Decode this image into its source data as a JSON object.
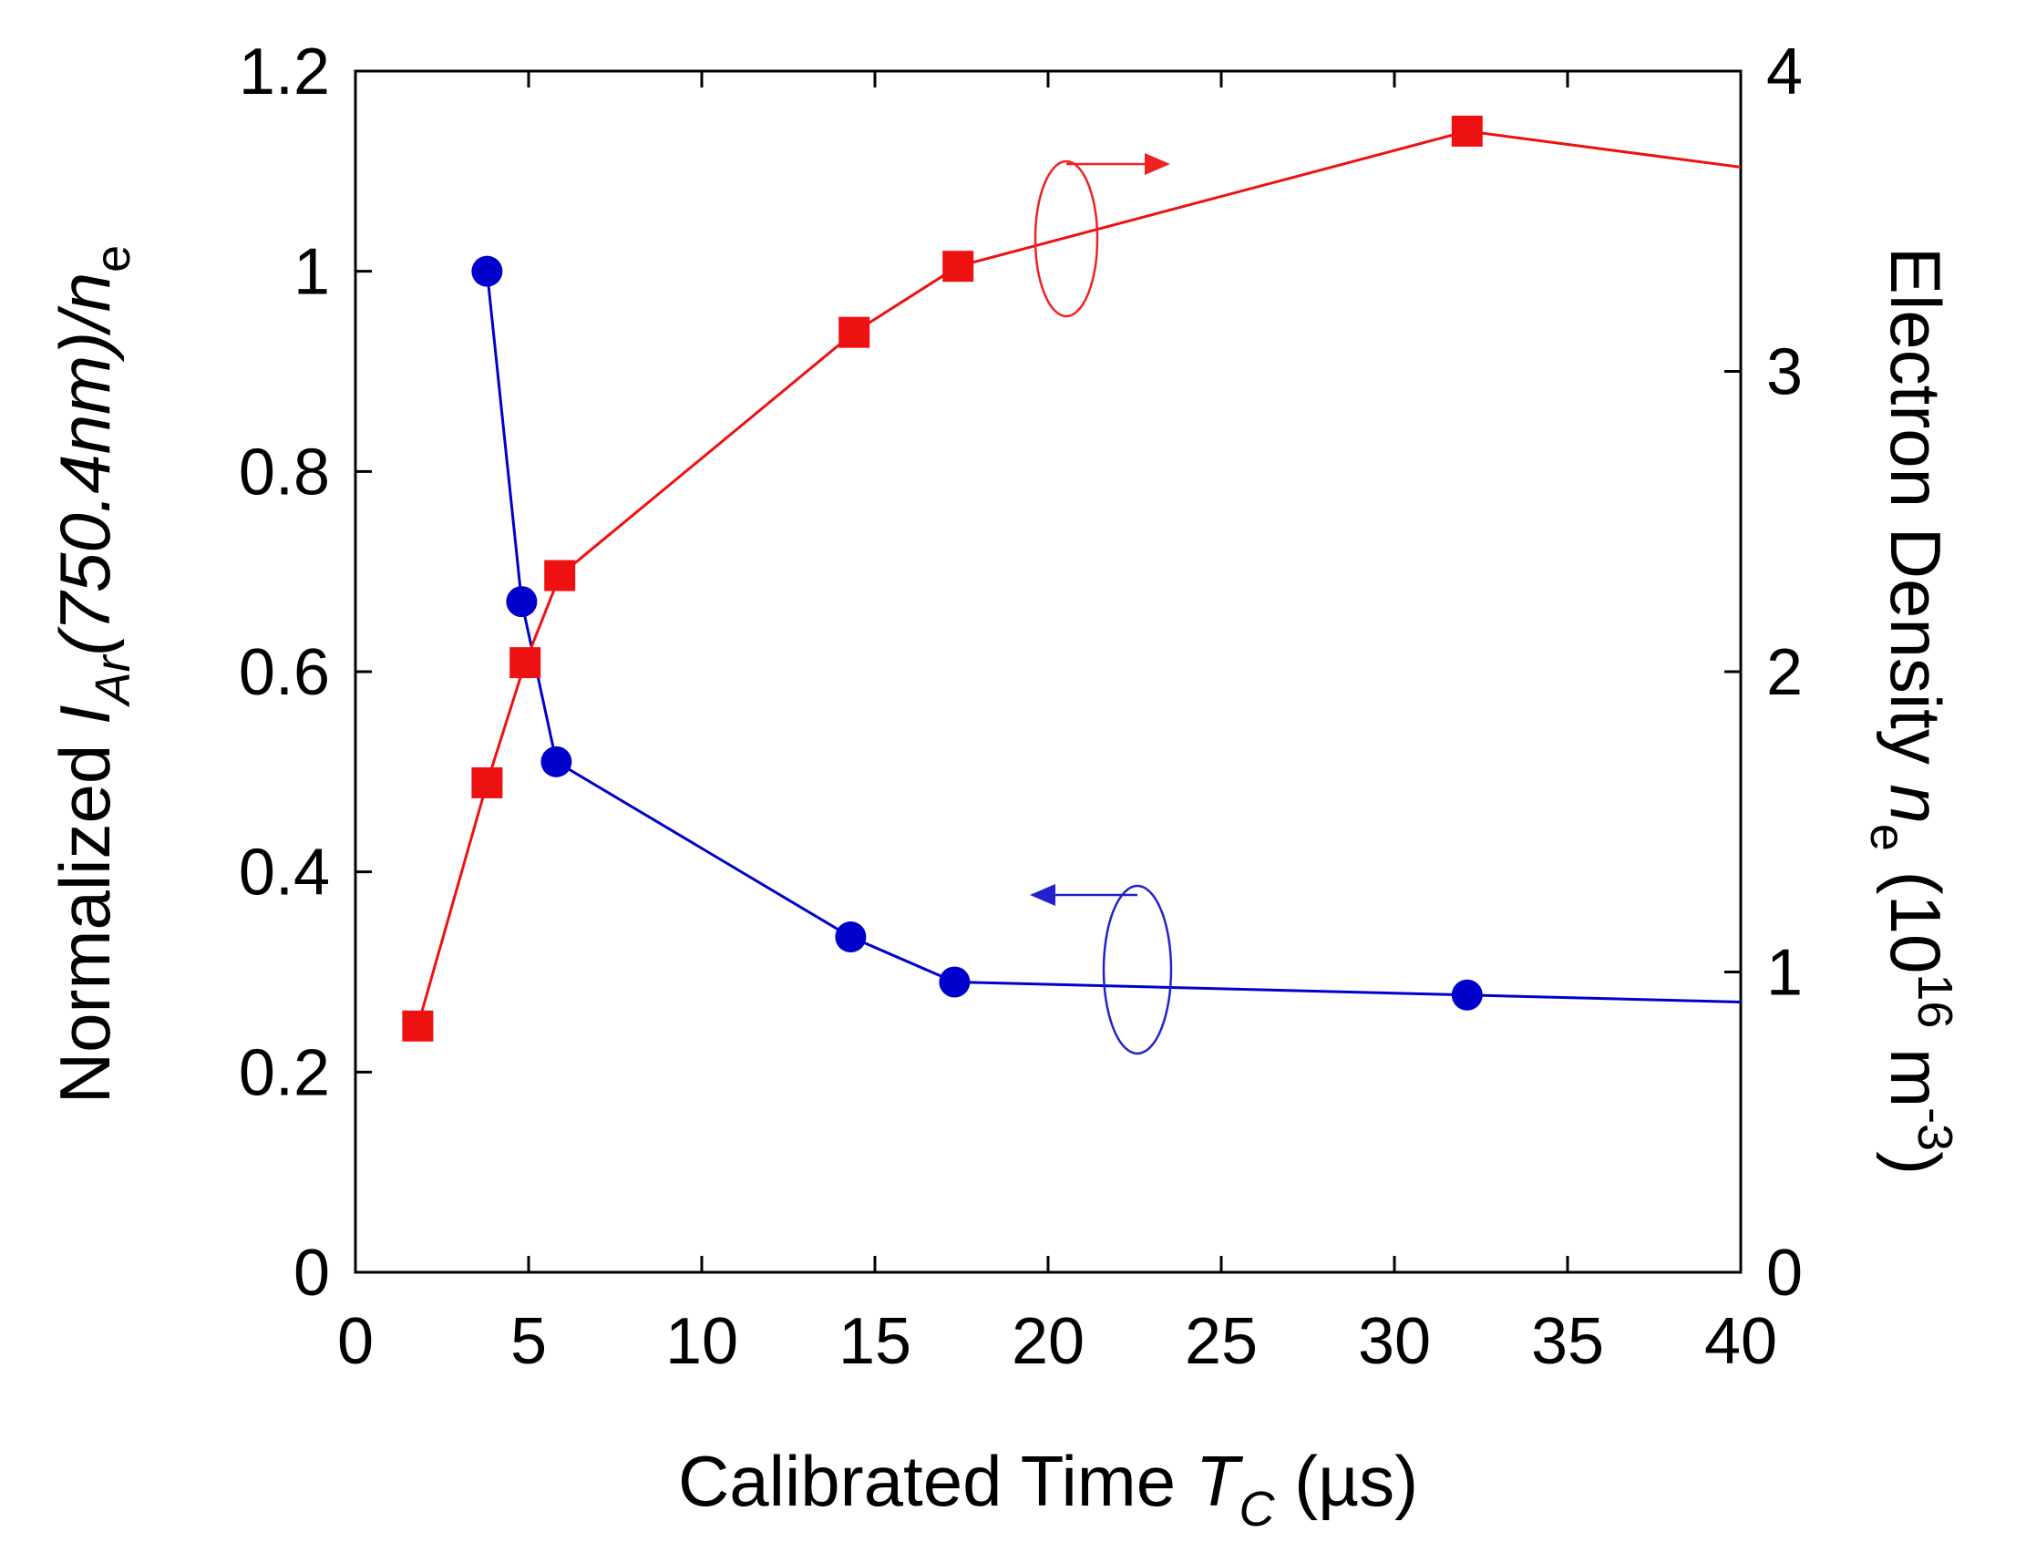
{
  "chart_data": {
    "type": "line",
    "title": "",
    "xlabel": {
      "main": "Calibrated Time ",
      "italic": "T",
      "sub": "C",
      "unit": " (µs)"
    },
    "ylabel_left": {
      "prefix": "Normalized ",
      "italic": "I",
      "sub": "Ar",
      "mid": "(750.4nm)/",
      "italic2": "n",
      "sub2": "e"
    },
    "ylabel_right": {
      "main": "Electron Density ",
      "italic": "n",
      "sub": "e",
      "unit_open": " (10",
      "sup": "16",
      "unit_mid": " m",
      "sup2": "-3",
      "unit_close": ")"
    },
    "xlim": [
      0,
      40
    ],
    "ylim_left": [
      0,
      1.2
    ],
    "ylim_right": [
      0,
      4
    ],
    "x_ticks": [
      "0",
      "5",
      "10",
      "15",
      "20",
      "25",
      "30",
      "35",
      "40"
    ],
    "x_tick_values": [
      0,
      5,
      10,
      15,
      20,
      25,
      30,
      35,
      40
    ],
    "y_left_ticks": [
      "0",
      "0.2",
      "0.4",
      "0.6",
      "0.8",
      "1",
      "1.2"
    ],
    "y_left_tick_values": [
      0,
      0.2,
      0.4,
      0.6,
      0.8,
      1.0,
      1.2
    ],
    "y_right_ticks": [
      "0",
      "1",
      "2",
      "3",
      "4"
    ],
    "y_right_tick_values": [
      0,
      1,
      2,
      3,
      4
    ],
    "grid": false,
    "series": [
      {
        "name": "Normalized I_Ar(750.4nm)/n_e",
        "axis": "left",
        "color": "#0000cc",
        "marker": "circle",
        "x": [
          3.8,
          4.8,
          5.8,
          14.3,
          17.3,
          32.1
        ],
        "y": [
          1.0,
          0.67,
          0.51,
          0.335,
          0.29,
          0.277
        ],
        "trail": {
          "x": 40,
          "y": 0.27
        }
      },
      {
        "name": "Electron Density n_e",
        "axis": "right",
        "color": "#ee1111",
        "marker": "square",
        "x": [
          1.8,
          3.8,
          4.9,
          5.9,
          14.4,
          17.4,
          32.1
        ],
        "y": [
          0.82,
          1.63,
          2.03,
          2.32,
          3.13,
          3.35,
          3.8
        ],
        "trail": {
          "x": 40,
          "y": 3.68
        }
      }
    ],
    "annotations": [
      {
        "name": "left-axis-indicator",
        "series": 0,
        "direction": "left"
      },
      {
        "name": "right-axis-indicator",
        "series": 1,
        "direction": "right"
      }
    ]
  }
}
